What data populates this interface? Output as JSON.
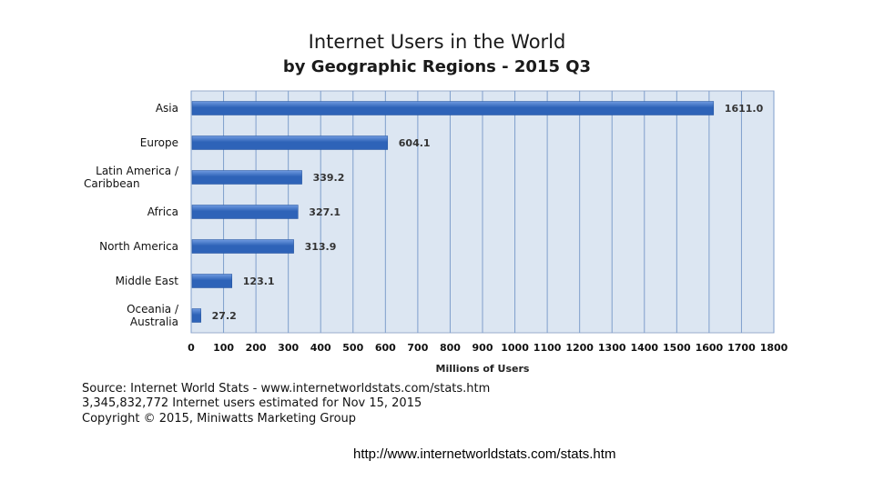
{
  "chart_data": {
    "type": "bar",
    "orientation": "horizontal",
    "title": "Internet Users in the World",
    "subtitle": "by Geographic Regions - 2015 Q3",
    "categories": [
      [
        "Asia"
      ],
      [
        "Europe"
      ],
      [
        "Latin America /",
        "Caribbean"
      ],
      [
        "Africa"
      ],
      [
        "North America"
      ],
      [
        "Middle East"
      ],
      [
        "Oceania /",
        "Australia"
      ]
    ],
    "values": [
      1611.0,
      604.1,
      339.2,
      327.1,
      313.9,
      123.1,
      27.2
    ],
    "value_labels": [
      "1611.0",
      "604.1",
      "339.2",
      "327.1",
      "313.9",
      "123.1",
      "27.2"
    ],
    "xlabel": "Millions of Users",
    "xlim": [
      0,
      1800
    ],
    "xticks": [
      0,
      100,
      200,
      300,
      400,
      500,
      600,
      700,
      800,
      900,
      1000,
      1100,
      1200,
      1300,
      1400,
      1500,
      1600,
      1700,
      1800
    ],
    "grid": true,
    "colors": {
      "bar": "#2e63b8",
      "bar_light": "#6f9ae0",
      "plot_bg": "#dce6f2",
      "grid": "#7f9fcc"
    }
  },
  "source": {
    "lines": [
      "Source: Internet World Stats - www.internetworldstats.com/stats.htm",
      "3,345,832,772 Internet users estimated for Nov 15, 2015",
      "Copyright © 2015, Miniwatts Marketing Group"
    ]
  },
  "footer_url": "http://www.internetworldstats.com/stats.htm"
}
